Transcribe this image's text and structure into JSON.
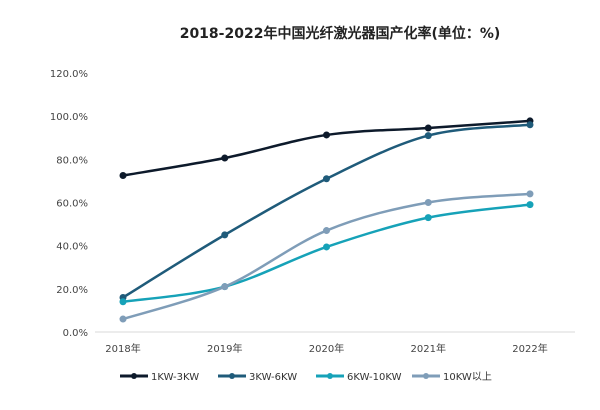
{
  "chart_data": {
    "type": "line",
    "title": "2018-2022年中国光纤激光器国产化率(单位：%)",
    "categories": [
      "2018年",
      "2019年",
      "2020年",
      "2021年",
      "2022年"
    ],
    "ylim": [
      0,
      120
    ],
    "yticks": [
      "0.0%",
      "20.0%",
      "40.0%",
      "60.0%",
      "80.0%",
      "100.0%",
      "120.0%"
    ],
    "ytick_values": [
      0,
      20,
      40,
      60,
      80,
      100,
      120
    ],
    "grid": false,
    "legend": "bottom",
    "series": [
      {
        "name": "1KW-3KW",
        "color": "#0d1a2b",
        "values": [
          72.5,
          80.6,
          91.3,
          94.5,
          97.8
        ]
      },
      {
        "name": "3KW-6KW",
        "color": "#1f5b7a",
        "values": [
          16,
          45,
          71,
          91,
          96
        ]
      },
      {
        "name": "6KW-10KW",
        "color": "#16a2b8",
        "values": [
          14,
          21,
          39.4,
          53,
          59
        ]
      },
      {
        "name": "10KW以上",
        "color": "#7f9db8",
        "values": [
          6,
          21,
          47,
          60,
          64
        ]
      }
    ]
  }
}
